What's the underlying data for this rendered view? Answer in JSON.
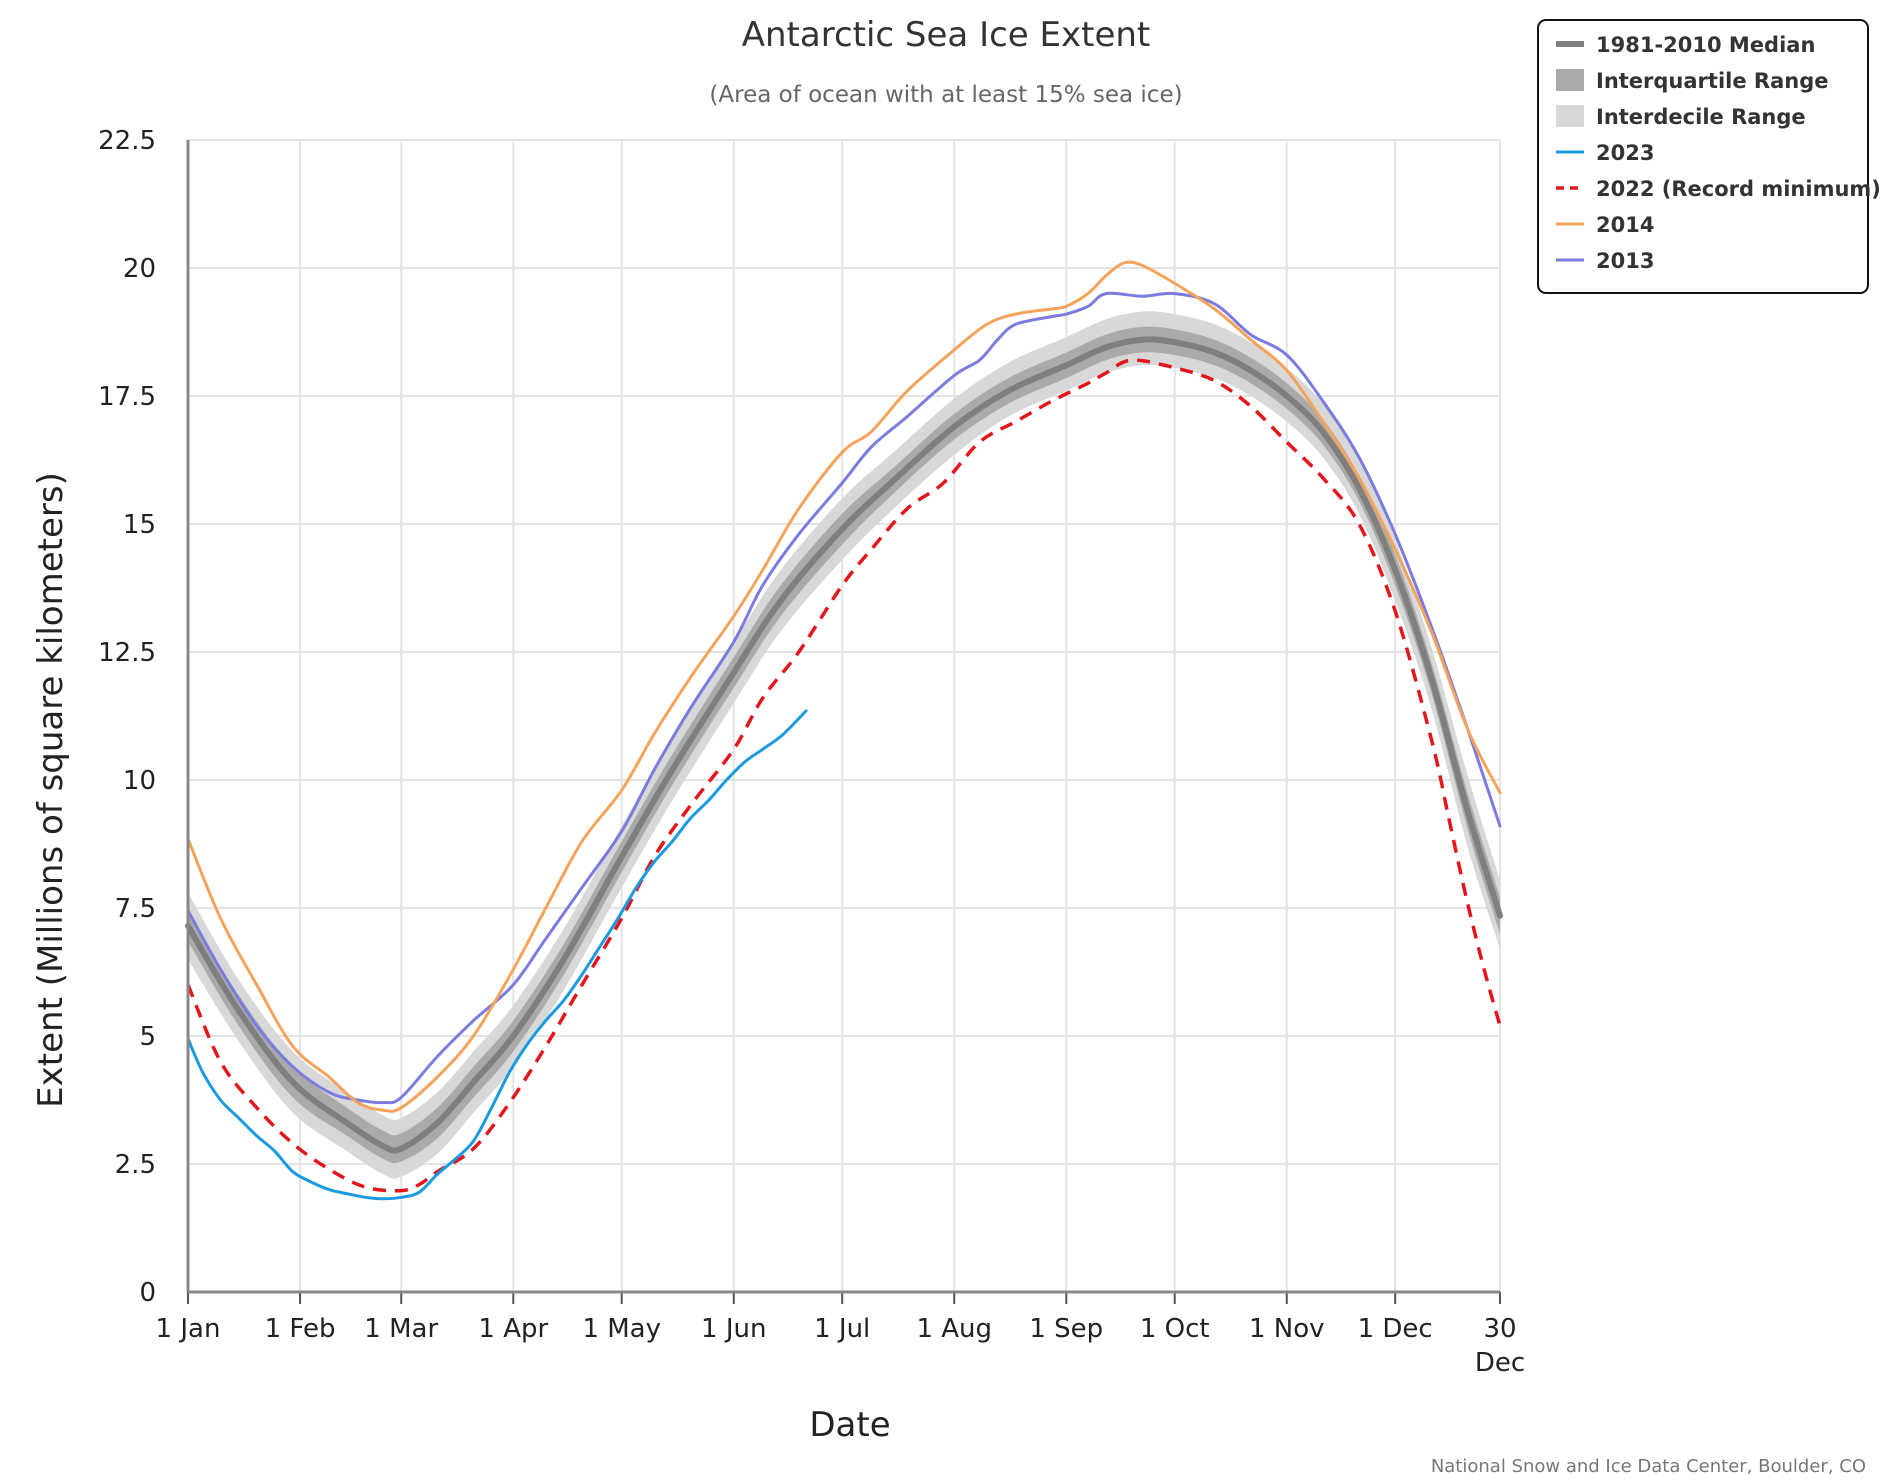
{
  "chart_data": {
    "type": "line",
    "title": "Antarctic Sea Ice Extent",
    "subtitle": "(Area of ocean with at least 15% sea ice)",
    "xlabel": "Date",
    "ylabel": "Extent (Millions of square kilometers)",
    "credit": "National Snow and Ice Data Center, Boulder, CO",
    "xlim": [
      1,
      364
    ],
    "ylim": [
      0,
      22.5
    ],
    "yticks": [
      0,
      2.5,
      5,
      7.5,
      10,
      12.5,
      15,
      17.5,
      20,
      22.5
    ],
    "ytick_labels": [
      "0",
      "2.5",
      "5",
      "7.5",
      "10",
      "12.5",
      "15",
      "17.5",
      "20",
      "22.5"
    ],
    "xticks": [
      {
        "day": 1,
        "label": "1 Jan"
      },
      {
        "day": 32,
        "label": "1 Feb"
      },
      {
        "day": 60,
        "label": "1 Mar"
      },
      {
        "day": 91,
        "label": "1 Apr"
      },
      {
        "day": 121,
        "label": "1 May"
      },
      {
        "day": 152,
        "label": "1 Jun"
      },
      {
        "day": 182,
        "label": "1 Jul"
      },
      {
        "day": 213,
        "label": "1 Aug"
      },
      {
        "day": 244,
        "label": "1 Sep"
      },
      {
        "day": 274,
        "label": "1 Oct"
      },
      {
        "day": 305,
        "label": "1 Nov"
      },
      {
        "day": 335,
        "label": "1 Dec"
      },
      {
        "day": 364,
        "label": "30",
        "label2": "Dec"
      }
    ],
    "grid": true,
    "legend_position": "top-right",
    "series": [
      {
        "name": "1981-2010 Median",
        "kind": "median",
        "color": "#7f7f7f",
        "x": [
          1,
          15,
          30,
          45,
          55,
          60,
          70,
          80,
          91,
          105,
          121,
          135,
          152,
          165,
          182,
          197,
          213,
          228,
          244,
          255,
          265,
          274,
          285,
          295,
          305,
          315,
          325,
          335,
          345,
          355,
          364
        ],
        "y": [
          7.15,
          5.5,
          4.1,
          3.3,
          2.85,
          2.8,
          3.3,
          4.1,
          5.0,
          6.5,
          8.5,
          10.2,
          12.1,
          13.5,
          14.9,
          15.9,
          16.9,
          17.6,
          18.1,
          18.45,
          18.6,
          18.55,
          18.35,
          18.0,
          17.5,
          16.8,
          15.7,
          14.1,
          12.0,
          9.4,
          7.35
        ]
      },
      {
        "name": "Interquartile Range",
        "kind": "band",
        "color": "#aaaaaa",
        "x": [
          1,
          15,
          30,
          45,
          55,
          60,
          70,
          80,
          91,
          105,
          121,
          135,
          152,
          165,
          182,
          197,
          213,
          228,
          244,
          255,
          265,
          274,
          285,
          295,
          305,
          315,
          325,
          335,
          345,
          355,
          364
        ],
        "low": [
          6.85,
          5.2,
          3.8,
          3.05,
          2.6,
          2.55,
          3.0,
          3.8,
          4.7,
          6.2,
          8.2,
          9.9,
          11.8,
          13.2,
          14.6,
          15.65,
          16.65,
          17.35,
          17.85,
          18.2,
          18.35,
          18.3,
          18.1,
          17.75,
          17.25,
          16.55,
          15.45,
          13.8,
          11.7,
          9.05,
          7.0
        ],
        "high": [
          7.45,
          5.8,
          4.4,
          3.6,
          3.15,
          3.1,
          3.6,
          4.4,
          5.3,
          6.8,
          8.8,
          10.5,
          12.4,
          13.8,
          15.2,
          16.15,
          17.15,
          17.85,
          18.35,
          18.7,
          18.85,
          18.8,
          18.6,
          18.25,
          17.75,
          17.05,
          15.95,
          14.4,
          12.3,
          9.75,
          7.7
        ]
      },
      {
        "name": "Interdecile Range",
        "kind": "band",
        "color": "#d8d8d8",
        "x": [
          1,
          15,
          30,
          45,
          55,
          60,
          70,
          80,
          91,
          105,
          121,
          135,
          152,
          165,
          182,
          197,
          213,
          228,
          244,
          255,
          265,
          274,
          285,
          295,
          305,
          315,
          325,
          335,
          345,
          355,
          364
        ],
        "low": [
          6.5,
          4.9,
          3.5,
          2.75,
          2.3,
          2.25,
          2.7,
          3.5,
          4.4,
          5.9,
          7.9,
          9.6,
          11.5,
          12.9,
          14.3,
          15.35,
          16.35,
          17.1,
          17.6,
          17.95,
          18.1,
          18.05,
          17.85,
          17.5,
          17.0,
          16.3,
          15.2,
          13.5,
          11.4,
          8.7,
          6.7
        ],
        "high": [
          7.8,
          6.1,
          4.7,
          3.9,
          3.45,
          3.4,
          3.9,
          4.7,
          5.6,
          7.1,
          9.1,
          10.8,
          12.7,
          14.1,
          15.5,
          16.45,
          17.45,
          18.15,
          18.65,
          19.0,
          19.15,
          19.1,
          18.9,
          18.55,
          18.05,
          17.35,
          16.25,
          14.7,
          12.6,
          10.1,
          8.05
        ]
      },
      {
        "name": "2023",
        "kind": "line",
        "color": "#1a9ae0",
        "x": [
          1,
          5,
          10,
          15,
          20,
          25,
          30,
          35,
          40,
          45,
          50,
          55,
          60,
          65,
          70,
          75,
          80,
          85,
          90,
          95,
          100,
          105,
          110,
          115,
          120,
          125,
          130,
          135,
          140,
          145,
          150,
          155,
          160,
          165,
          170,
          172
        ],
        "y": [
          4.95,
          4.3,
          3.75,
          3.4,
          3.05,
          2.75,
          2.35,
          2.15,
          2.0,
          1.92,
          1.85,
          1.82,
          1.85,
          1.95,
          2.3,
          2.6,
          2.95,
          3.6,
          4.3,
          4.85,
          5.3,
          5.7,
          6.2,
          6.75,
          7.3,
          7.9,
          8.4,
          8.8,
          9.25,
          9.6,
          10.0,
          10.35,
          10.6,
          10.85,
          11.2,
          11.35
        ]
      },
      {
        "name": "2022 (Record minimum)",
        "kind": "dashed",
        "color": "#e4151b",
        "x": [
          1,
          10,
          20,
          30,
          40,
          50,
          60,
          65,
          70,
          80,
          90,
          100,
          110,
          121,
          130,
          140,
          152,
          160,
          170,
          182,
          190,
          200,
          210,
          220,
          230,
          240,
          250,
          255,
          262,
          274,
          285,
          295,
          305,
          315,
          325,
          335,
          345,
          350,
          355,
          360,
          364
        ],
        "y": [
          6.0,
          4.5,
          3.6,
          2.9,
          2.4,
          2.05,
          1.98,
          2.1,
          2.35,
          2.8,
          3.7,
          4.8,
          6.0,
          7.3,
          8.5,
          9.5,
          10.6,
          11.6,
          12.5,
          13.8,
          14.5,
          15.3,
          15.8,
          16.6,
          17.0,
          17.4,
          17.75,
          17.95,
          18.2,
          18.05,
          17.8,
          17.3,
          16.6,
          15.9,
          15.0,
          13.3,
          10.8,
          9.2,
          7.6,
          6.2,
          5.2
        ]
      },
      {
        "name": "2014",
        "kind": "line",
        "color": "#f4a45a",
        "x": [
          1,
          10,
          20,
          30,
          40,
          48,
          55,
          60,
          70,
          80,
          91,
          100,
          110,
          121,
          130,
          140,
          152,
          160,
          170,
          182,
          190,
          200,
          213,
          222,
          230,
          240,
          244,
          250,
          255,
          260,
          265,
          274,
          285,
          295,
          305,
          315,
          325,
          335,
          345,
          355,
          364
        ],
        "y": [
          8.85,
          7.3,
          6.0,
          4.8,
          4.2,
          3.7,
          3.55,
          3.6,
          4.2,
          5.0,
          6.3,
          7.5,
          8.8,
          9.8,
          10.9,
          12.0,
          13.2,
          14.1,
          15.3,
          16.4,
          16.8,
          17.6,
          18.4,
          18.9,
          19.1,
          19.2,
          19.25,
          19.5,
          19.85,
          20.1,
          20.05,
          19.7,
          19.2,
          18.6,
          18.0,
          17.0,
          15.9,
          14.5,
          12.9,
          11.0,
          9.75
        ]
      },
      {
        "name": "2013",
        "kind": "line",
        "color": "#7b7be0",
        "x": [
          1,
          10,
          20,
          30,
          40,
          48,
          55,
          60,
          70,
          80,
          91,
          100,
          110,
          121,
          130,
          140,
          152,
          160,
          170,
          182,
          190,
          200,
          213,
          220,
          225,
          230,
          240,
          244,
          250,
          255,
          265,
          274,
          285,
          295,
          305,
          315,
          325,
          335,
          345,
          355,
          364
        ],
        "y": [
          7.45,
          6.3,
          5.2,
          4.4,
          3.9,
          3.75,
          3.7,
          3.8,
          4.6,
          5.3,
          6.0,
          6.9,
          7.9,
          9.0,
          10.2,
          11.4,
          12.7,
          13.8,
          14.8,
          15.8,
          16.5,
          17.1,
          17.9,
          18.2,
          18.6,
          18.9,
          19.05,
          19.1,
          19.25,
          19.5,
          19.45,
          19.5,
          19.3,
          18.7,
          18.3,
          17.4,
          16.3,
          14.8,
          13.0,
          11.0,
          9.1
        ]
      }
    ]
  }
}
